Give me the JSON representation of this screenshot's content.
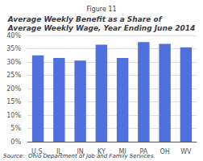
{
  "chart_data": {
    "type": "bar",
    "subtitle": "Figure 11",
    "title": "Average Weekly Benefit as a Share of\nAverage Weekly Wage, Year Ending June 2014",
    "annotations": [
      "Source:  Ohio Department of Job and Family Services."
    ],
    "categories": [
      "U.S.",
      "IL",
      "IN",
      "KY",
      "MI",
      "PA",
      "OH",
      "WV"
    ],
    "values": [
      32.5,
      31.5,
      30.5,
      36.5,
      31.5,
      37.5,
      36.8,
      35.5
    ],
    "ylim": [
      0,
      40
    ],
    "yticks": [
      {
        "value": 0,
        "label": "0%"
      },
      {
        "value": 5,
        "label": "5%"
      },
      {
        "value": 10,
        "label": "10%"
      },
      {
        "value": 15,
        "label": "15%"
      },
      {
        "value": 20,
        "label": "20%"
      },
      {
        "value": 25,
        "label": "25%"
      },
      {
        "value": 30,
        "label": "30%"
      },
      {
        "value": 35,
        "label": "35%"
      },
      {
        "value": 40,
        "label": "40%"
      }
    ],
    "grid": true
  }
}
